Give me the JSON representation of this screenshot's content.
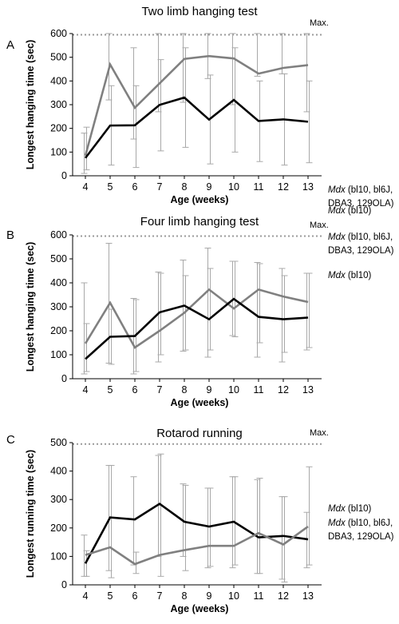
{
  "chart_data": [
    {
      "panel": "A",
      "type": "line",
      "title": "Two limb hanging test",
      "xlabel": "Age (weeks)",
      "ylabel": "Longest hanging time (sec)",
      "ylim": [
        0,
        600
      ],
      "yticks": [
        0,
        100,
        200,
        300,
        400,
        500,
        600
      ],
      "x": [
        4,
        5,
        6,
        7,
        8,
        9,
        10,
        11,
        12,
        13
      ],
      "max_value": 595,
      "max_label": "Max.",
      "series": [
        {
          "name_lines": [
            [
              "Mdx",
              " (bl10, bl6J,"
            ],
            [
              "",
              "DBA3, 129OLA)"
            ]
          ],
          "color": "#808080",
          "values": [
            85,
            470,
            287,
            390,
            493,
            505,
            495,
            431,
            455,
            467
          ],
          "err_low": [
            10,
            320,
            155,
            270,
            310,
            410,
            300,
            420,
            430,
            270
          ],
          "err_high": [
            180,
            600,
            540,
            600,
            600,
            600,
            600,
            600,
            600,
            600
          ]
        },
        {
          "name_lines": [
            [
              "Mdx",
              " (bl10)"
            ]
          ],
          "color": "#000000",
          "values": [
            75,
            212,
            213,
            299,
            330,
            237,
            320,
            231,
            238,
            228
          ],
          "err_low": [
            25,
            45,
            35,
            105,
            120,
            50,
            100,
            60,
            45,
            55
          ],
          "err_high": [
            205,
            380,
            380,
            490,
            540,
            425,
            540,
            400,
            430,
            400
          ]
        }
      ]
    },
    {
      "panel": "B",
      "type": "line",
      "title": "Four limb hanging test",
      "xlabel": "Age (weeks)",
      "ylabel": "Longest hanging time (sec)",
      "ylim": [
        0,
        600
      ],
      "yticks": [
        0,
        100,
        200,
        300,
        400,
        500,
        600
      ],
      "x": [
        4,
        5,
        6,
        7,
        8,
        9,
        10,
        11,
        12,
        13
      ],
      "max_value": 595,
      "max_label": "Max.",
      "series": [
        {
          "name_lines": [
            [
              "Mdx",
              " (bl10, bl6J,"
            ],
            [
              "",
              "DBA3, 129OLA)"
            ]
          ],
          "color": "#808080",
          "values": [
            147,
            317,
            130,
            200,
            275,
            372,
            293,
            372,
            343,
            320
          ],
          "err_low": [
            20,
            65,
            20,
            70,
            115,
            90,
            180,
            90,
            70,
            120
          ],
          "err_high": [
            400,
            565,
            335,
            445,
            495,
            545,
            490,
            485,
            460,
            440
          ]
        },
        {
          "name_lines": [
            [
              "Mdx",
              " (bl10)"
            ]
          ],
          "color": "#000000",
          "values": [
            82,
            175,
            178,
            277,
            305,
            248,
            333,
            258,
            248,
            255
          ],
          "err_low": [
            30,
            60,
            30,
            100,
            120,
            120,
            175,
            150,
            110,
            130
          ],
          "err_high": [
            230,
            290,
            330,
            440,
            430,
            460,
            490,
            480,
            430,
            440
          ]
        }
      ]
    },
    {
      "panel": "C",
      "type": "line",
      "title": "Rotarod running",
      "xlabel": "Age (weeks)",
      "ylabel": "Longest running time (sec)",
      "ylim": [
        0,
        500
      ],
      "yticks": [
        0,
        100,
        200,
        300,
        400,
        500
      ],
      "x": [
        4,
        5,
        6,
        7,
        8,
        9,
        10,
        11,
        12,
        13
      ],
      "max_value": 495,
      "max_label": "Max.",
      "series": [
        {
          "name_lines": [
            [
              "Mdx",
              " (bl10)"
            ]
          ],
          "color": "#000000",
          "values": [
            75,
            237,
            230,
            285,
            222,
            205,
            222,
            167,
            172,
            160
          ],
          "err_low": [
            30,
            50,
            70,
            100,
            100,
            60,
            60,
            40,
            20,
            60
          ],
          "err_high": [
            175,
            420,
            380,
            455,
            355,
            340,
            380,
            370,
            310,
            255
          ]
        },
        {
          "name_lines": [
            [
              "Mdx",
              " (bl10, bl6J,"
            ],
            [
              "",
              "DBA3, 129OLA)"
            ]
          ],
          "color": "#808080",
          "values": [
            105,
            132,
            73,
            105,
            122,
            137,
            137,
            182,
            142,
            205
          ],
          "err_low": [
            30,
            25,
            40,
            30,
            50,
            65,
            70,
            40,
            10,
            70
          ],
          "err_high": [
            120,
            420,
            115,
            460,
            350,
            340,
            380,
            375,
            310,
            415
          ]
        }
      ]
    }
  ]
}
